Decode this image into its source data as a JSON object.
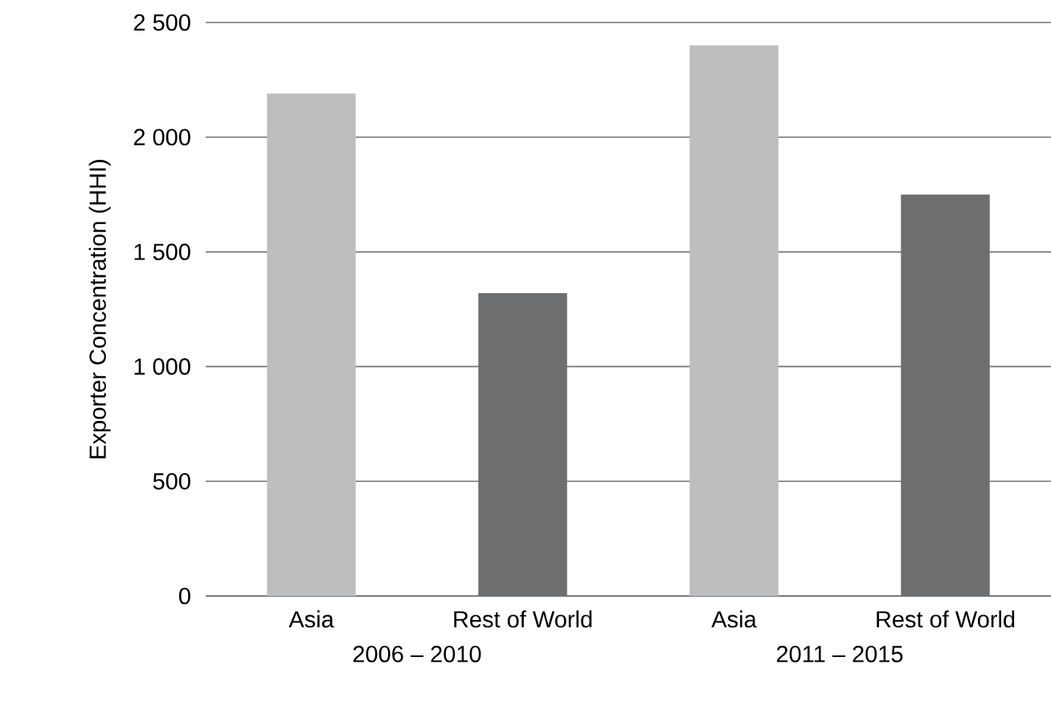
{
  "chart_data": {
    "type": "bar",
    "ylabel": "Exporter Concentration (HHI)",
    "categories": [
      "2006 – 2010",
      "2011 – 2015"
    ],
    "series": [
      {
        "name": "Asia",
        "color": "#bdbec0",
        "values": [
          2190,
          2400
        ]
      },
      {
        "name": "Rest of World",
        "color": "#6d6e70",
        "values": [
          1320,
          1750
        ]
      }
    ],
    "ylim": [
      0,
      2500
    ],
    "yticks": [
      0,
      500,
      {
        "value": 1000,
        "label": "1 000"
      },
      {
        "value": 1500,
        "label": "1 500"
      },
      {
        "value": 2000,
        "label": "2 000"
      },
      {
        "value": 2500,
        "label": "2 500"
      }
    ],
    "grid": "y"
  }
}
